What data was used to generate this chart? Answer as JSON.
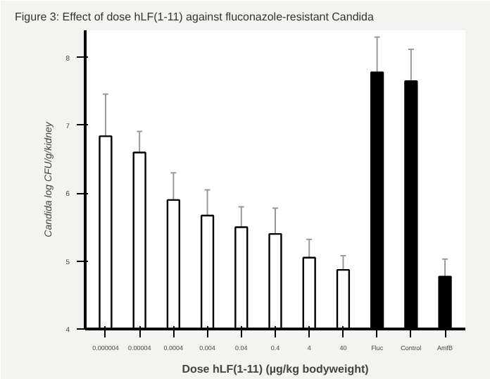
{
  "chart_data": {
    "type": "bar",
    "title": "Figure 3:  Effect of dose hLF(1-11) against fluconazole-resistant Candida",
    "xlabel": "Dose hLF(1-11) (µg/kg bodyweight)",
    "ylabel": "Candida log CFU/g/kidney",
    "categories": [
      "0.000004",
      "0.00004",
      "0.0004",
      "0.004",
      "0.04",
      "0.4",
      "4",
      "40",
      "Fluc",
      "Control",
      "AmfB"
    ],
    "values": [
      6.84,
      6.6,
      5.9,
      5.67,
      5.5,
      5.4,
      5.05,
      4.87,
      7.78,
      7.65,
      4.77
    ],
    "colors": [
      "#ffffff",
      "#ffffff",
      "#ffffff",
      "#ffffff",
      "#ffffff",
      "#ffffff",
      "#ffffff",
      "#ffffff",
      "#000000",
      "#000000",
      "#000000"
    ],
    "errors": [
      [
        6.84,
        7.46
      ],
      [
        6.6,
        6.91
      ],
      [
        5.9,
        6.3
      ],
      [
        5.67,
        6.05
      ],
      [
        5.5,
        5.8
      ],
      [
        5.4,
        5.78
      ],
      [
        5.05,
        5.32
      ],
      [
        4.87,
        5.08
      ],
      [
        7.78,
        8.3
      ],
      [
        7.65,
        8.12
      ],
      [
        4.77,
        5.03
      ]
    ],
    "ylim": [
      4,
      8.4
    ],
    "yticks": [
      4,
      5,
      6,
      7,
      8
    ],
    "grid": false
  }
}
